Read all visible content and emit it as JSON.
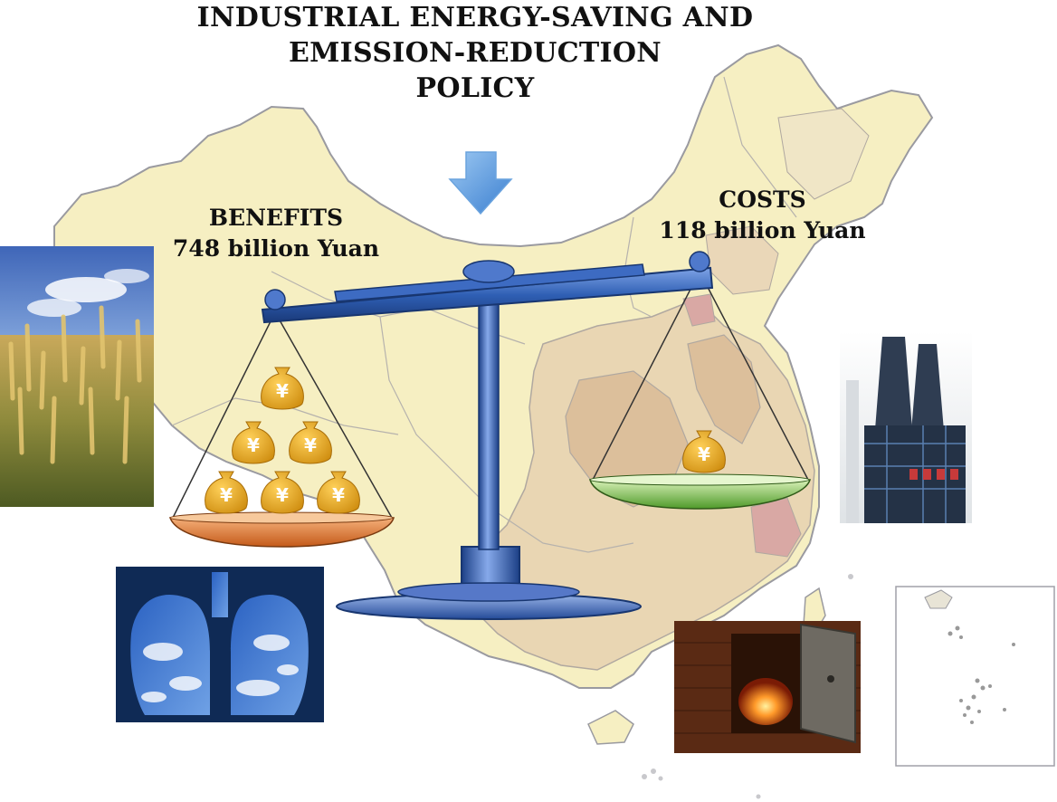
{
  "title": {
    "line1": "INDUSTRIAL ENERGY-SAVING AND",
    "line2": "EMISSION-REDUCTION",
    "line3": "POLICY"
  },
  "benefits": {
    "label": "BENEFITS",
    "value": "748 billion Yuan",
    "bags": 6
  },
  "costs": {
    "label": "COSTS",
    "value": "118 billion Yuan",
    "bags": 1
  },
  "currency_symbol": "¥",
  "icons": [
    "down-arrow-icon",
    "balance-scale-icon",
    "money-bag-icon"
  ],
  "images": [
    "wheat-field-photo",
    "lungs-sky-photo",
    "industrial-plant-photo",
    "furnace-photo",
    "south-sea-islands-inset"
  ],
  "colors": {
    "map_fill": "#f6efc2",
    "map_dark": "#dcbf9b",
    "map_mid": "#e9d6b3",
    "scale_blue": "#2f5fb4",
    "benefit_pan": "#d9722e",
    "cost_pan": "#7cc24f",
    "bag_gold": "#e6a92a"
  }
}
